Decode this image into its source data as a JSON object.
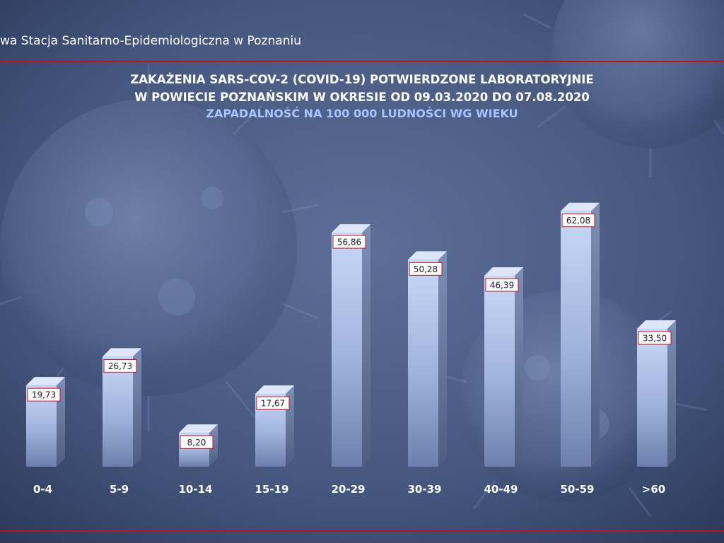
{
  "header": {
    "title": "wa Stacja Sanitarno-Epidemiologiczna w Poznaniu"
  },
  "colors": {
    "background": "#3d4f78",
    "rule": "#c4121a",
    "title": "#ffffff",
    "subtitle": "#a6c4ff",
    "label_border": "#c4121a"
  },
  "chart_data": {
    "type": "bar",
    "title": "ZAKAŻENIA SARS-COV-2 (COVID-19) POTWIERDZONE LABORATORYJNIE",
    "title_line2": "W POWIECIE POZNAŃSKIM W OKRESIE OD 09.03.2020 DO 07.08.2020",
    "subtitle": "ZAPADALNOŚĆ NA 100 000 LUDNOŚCI WG WIEKU",
    "xlabel": "",
    "ylabel": "",
    "ylim": [
      0,
      70
    ],
    "grid": false,
    "legend": "none",
    "categories": [
      "0-4",
      "5-9",
      "10-14",
      "15-19",
      "20-29",
      "30-39",
      "40-49",
      "50-59",
      ">60"
    ],
    "values": [
      19.73,
      26.73,
      8.2,
      17.67,
      56.86,
      50.28,
      46.39,
      62.08,
      33.5
    ],
    "value_labels": [
      "19,73",
      "26,73",
      "8,20",
      "17,67",
      "56,86",
      "50,28",
      "46,39",
      "62,08",
      "33,50"
    ]
  }
}
